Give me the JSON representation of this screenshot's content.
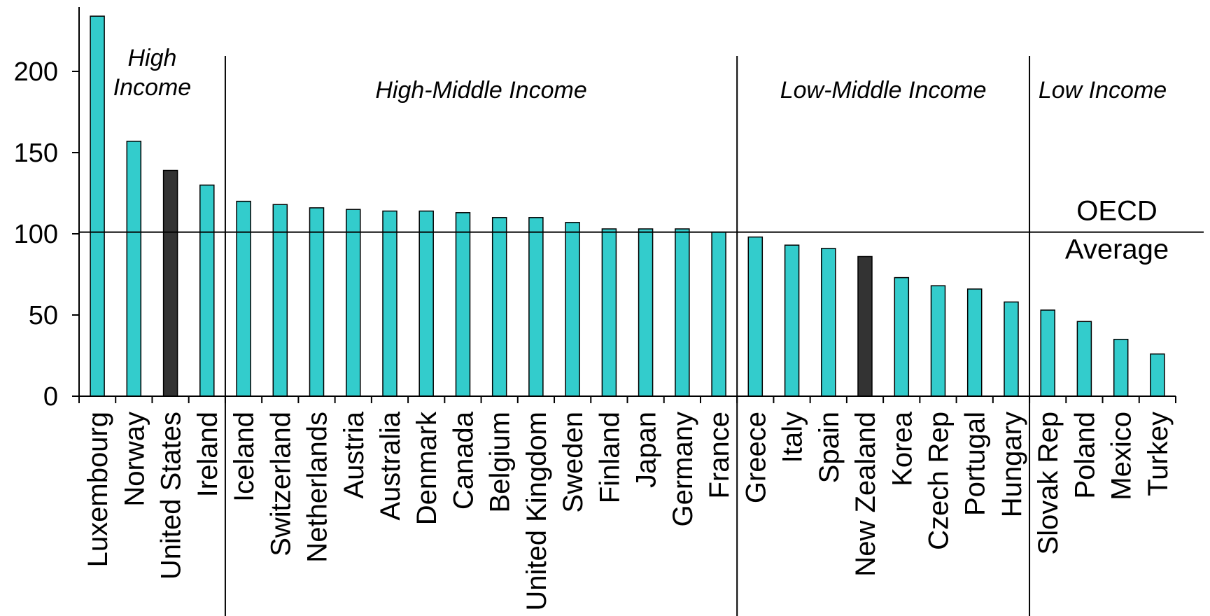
{
  "chart_data": {
    "type": "bar",
    "title": "",
    "xlabel": "",
    "ylabel": "",
    "ylim": [
      0,
      240
    ],
    "yticks": [
      0,
      50,
      100,
      150,
      200
    ],
    "grid": false,
    "categories": [
      "Luxembourg",
      "Norway",
      "United States",
      "Ireland",
      "Iceland",
      "Switzerland",
      "Netherlands",
      "Austria",
      "Australia",
      "Denmark",
      "Canada",
      "Belgium",
      "United Kingdom",
      "Sweden",
      "Finland",
      "Japan",
      "Germany",
      "France",
      "Greece",
      "Italy",
      "Spain",
      "New Zealand",
      "Korea",
      "Czech Rep",
      "Portugal",
      "Hungary",
      "Slovak Rep",
      "Poland",
      "Mexico",
      "Turkey"
    ],
    "values": [
      234,
      157,
      139,
      130,
      120,
      118,
      116,
      115,
      114,
      114,
      113,
      110,
      110,
      107,
      103,
      103,
      103,
      101,
      98,
      93,
      91,
      86,
      73,
      68,
      66,
      58,
      53,
      46,
      35,
      26
    ],
    "colors": {
      "default": "#33cccc",
      "highlight": "#333333",
      "bar_outline": "#000000"
    },
    "highlighted": [
      "United States",
      "New Zealand"
    ],
    "groups": [
      {
        "label_lines": [
          "High",
          "Income"
        ],
        "start": 0,
        "end": 3
      },
      {
        "label_lines": [
          "High-Middle Income"
        ],
        "start": 4,
        "end": 17
      },
      {
        "label_lines": [
          "Low-Middle Income"
        ],
        "start": 18,
        "end": 25
      },
      {
        "label_lines": [
          "Low Income"
        ],
        "start": 26,
        "end": 29
      }
    ],
    "reference_line": {
      "value": 101,
      "label_lines": [
        "OECD",
        "Average"
      ]
    }
  }
}
